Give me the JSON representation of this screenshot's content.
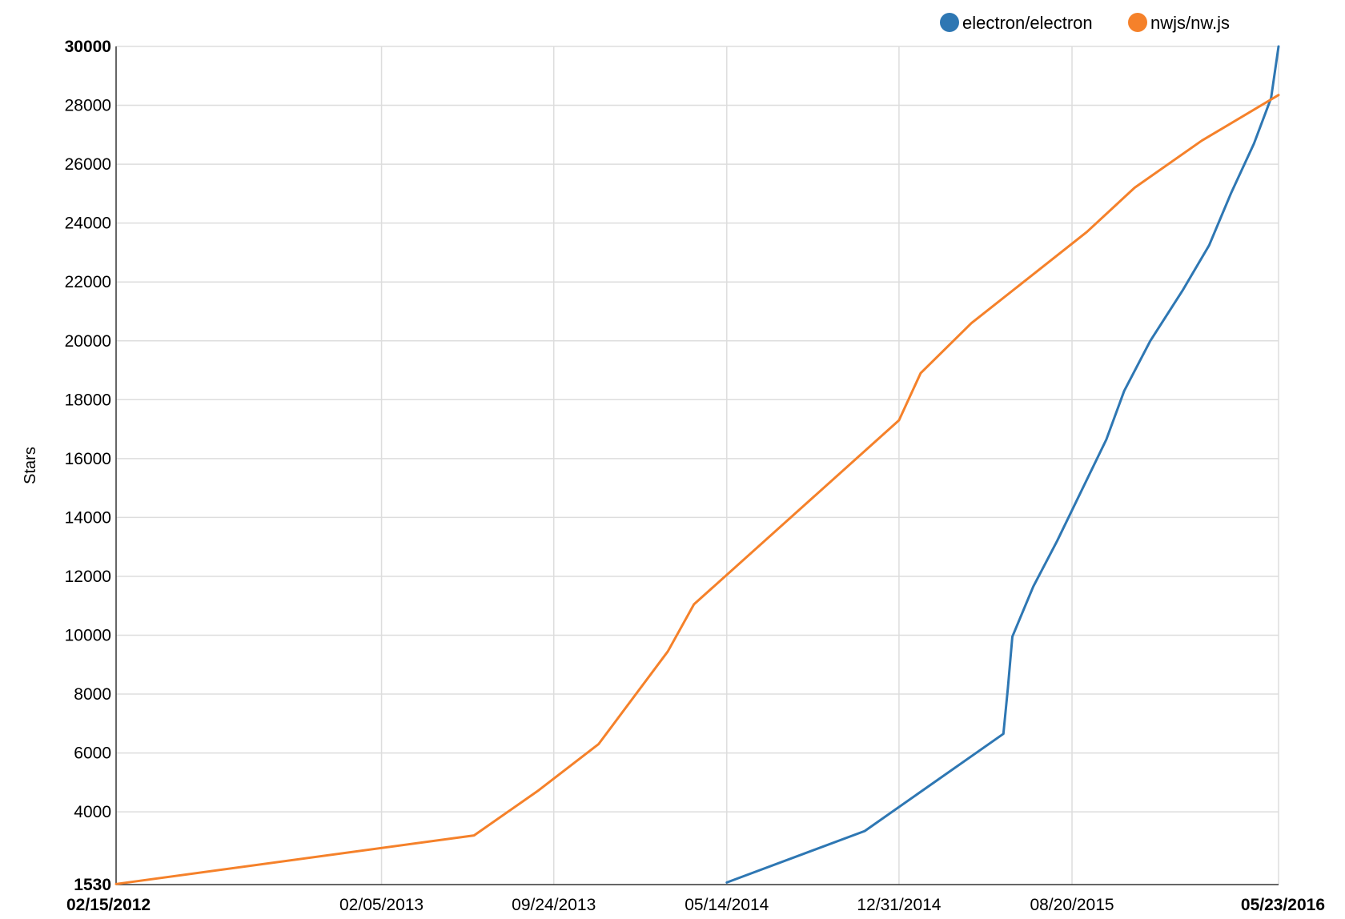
{
  "chart_data": {
    "type": "line",
    "title": "",
    "xlabel": "",
    "ylabel": "Stars",
    "xlim": [
      "2012-02-15",
      "2016-05-23"
    ],
    "ylim": [
      1530,
      30000
    ],
    "x_ticks": [
      {
        "date": "2012-02-15",
        "label": "02/15/2012",
        "bold": true
      },
      {
        "date": "2013-02-05",
        "label": "02/05/2013",
        "bold": false
      },
      {
        "date": "2013-09-24",
        "label": "09/24/2013",
        "bold": false
      },
      {
        "date": "2014-05-14",
        "label": "05/14/2014",
        "bold": false
      },
      {
        "date": "2014-12-31",
        "label": "12/31/2014",
        "bold": false
      },
      {
        "date": "2015-08-20",
        "label": "08/20/2015",
        "bold": false
      },
      {
        "date": "2016-05-23",
        "label": "05/23/2016",
        "bold": true
      }
    ],
    "y_ticks": [
      {
        "value": 1530,
        "label": "1530",
        "bold": true
      },
      {
        "value": 4000,
        "label": "4000",
        "bold": false
      },
      {
        "value": 6000,
        "label": "6000",
        "bold": false
      },
      {
        "value": 8000,
        "label": "8000",
        "bold": false
      },
      {
        "value": 10000,
        "label": "10000",
        "bold": false
      },
      {
        "value": 12000,
        "label": "12000",
        "bold": false
      },
      {
        "value": 14000,
        "label": "14000",
        "bold": false
      },
      {
        "value": 16000,
        "label": "16000",
        "bold": false
      },
      {
        "value": 18000,
        "label": "18000",
        "bold": false
      },
      {
        "value": 20000,
        "label": "20000",
        "bold": false
      },
      {
        "value": 22000,
        "label": "22000",
        "bold": false
      },
      {
        "value": 24000,
        "label": "24000",
        "bold": false
      },
      {
        "value": 26000,
        "label": "26000",
        "bold": false
      },
      {
        "value": 28000,
        "label": "28000",
        "bold": false
      },
      {
        "value": 30000,
        "label": "30000",
        "bold": true
      }
    ],
    "grid": true,
    "legend": "top-right",
    "series": [
      {
        "name": "electron/electron",
        "color": "#2e77b3",
        "points": [
          [
            "2014-05-14",
            1600
          ],
          [
            "2014-11-15",
            3350
          ],
          [
            "2015-05-20",
            6650
          ],
          [
            "2015-05-26",
            8200
          ],
          [
            "2015-06-01",
            9950
          ],
          [
            "2015-06-29",
            11650
          ],
          [
            "2015-07-31",
            13200
          ],
          [
            "2015-10-05",
            16650
          ],
          [
            "2015-10-29",
            18300
          ],
          [
            "2015-12-03",
            20000
          ],
          [
            "2016-01-15",
            21700
          ],
          [
            "2016-02-20",
            23250
          ],
          [
            "2016-03-20",
            25000
          ],
          [
            "2016-04-20",
            26700
          ],
          [
            "2016-05-13",
            28250
          ],
          [
            "2016-05-23",
            30000
          ]
        ]
      },
      {
        "name": "nwjs/nw.js",
        "color": "#f5812a",
        "points": [
          [
            "2012-02-15",
            1550
          ],
          [
            "2013-06-09",
            3200
          ],
          [
            "2013-09-02",
            4700
          ],
          [
            "2013-11-23",
            6300
          ],
          [
            "2014-02-24",
            9450
          ],
          [
            "2014-03-31",
            11050
          ],
          [
            "2014-12-31",
            17300
          ],
          [
            "2015-01-29",
            18900
          ],
          [
            "2015-04-07",
            20600
          ],
          [
            "2015-09-09",
            23700
          ],
          [
            "2015-11-12",
            25200
          ],
          [
            "2016-02-10",
            26800
          ],
          [
            "2016-05-23",
            28350
          ]
        ]
      }
    ]
  }
}
